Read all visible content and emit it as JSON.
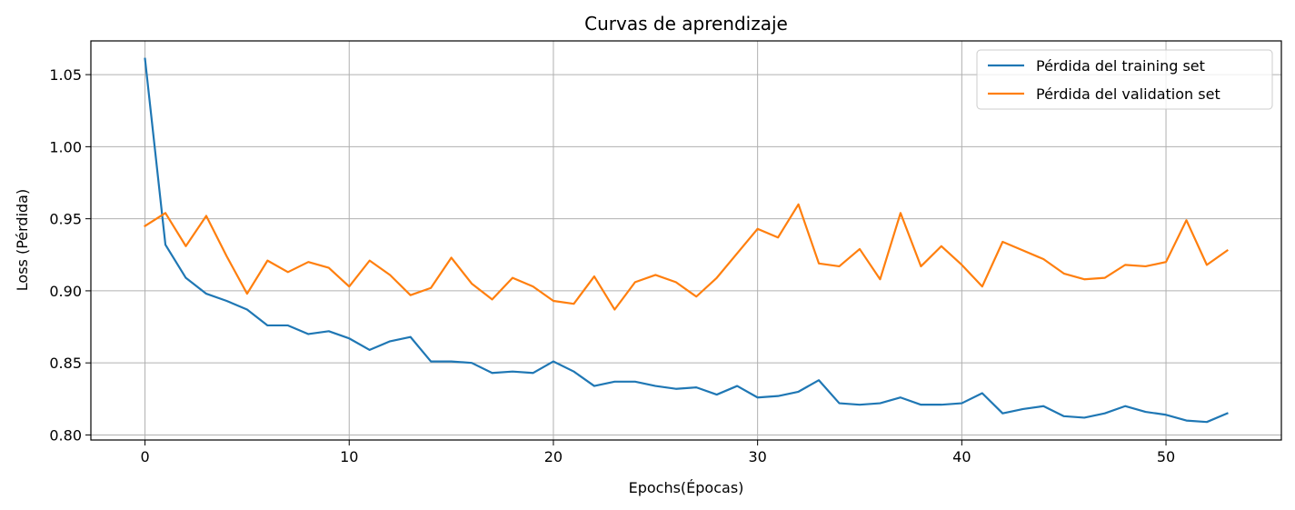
{
  "chart_data": {
    "type": "line",
    "title": "Curvas de aprendizaje",
    "xlabel": "Epochs(Épocas)",
    "ylabel": "Loss (Pérdida)",
    "xlim": [
      -2.65,
      55.65
    ],
    "ylim": [
      0.7965,
      1.0734
    ],
    "xticks": [
      0,
      10,
      20,
      30,
      40,
      50
    ],
    "xtick_labels": [
      "0",
      "10",
      "20",
      "30",
      "40",
      "50"
    ],
    "yticks": [
      0.8,
      0.85,
      0.9,
      0.95,
      1.0,
      1.05
    ],
    "ytick_labels": [
      "0.80",
      "0.85",
      "0.90",
      "0.95",
      "1.00",
      "1.05"
    ],
    "grid": true,
    "legend_position": "top-right",
    "x": [
      0,
      1,
      2,
      3,
      4,
      5,
      6,
      7,
      8,
      9,
      10,
      11,
      12,
      13,
      14,
      15,
      16,
      17,
      18,
      19,
      20,
      21,
      22,
      23,
      24,
      25,
      26,
      27,
      28,
      29,
      30,
      31,
      32,
      33,
      34,
      35,
      36,
      37,
      38,
      39,
      40,
      41,
      42,
      43,
      44,
      45,
      46,
      47,
      48,
      49,
      50,
      51,
      52,
      53
    ],
    "series": [
      {
        "name": "Pérdida del training set",
        "color": "#1f77b4",
        "values": [
          1.061,
          0.932,
          0.909,
          0.898,
          0.893,
          0.887,
          0.876,
          0.876,
          0.87,
          0.872,
          0.867,
          0.859,
          0.865,
          0.868,
          0.851,
          0.851,
          0.85,
          0.843,
          0.844,
          0.843,
          0.851,
          0.844,
          0.834,
          0.837,
          0.837,
          0.834,
          0.832,
          0.833,
          0.828,
          0.834,
          0.826,
          0.827,
          0.83,
          0.838,
          0.822,
          0.821,
          0.822,
          0.826,
          0.821,
          0.821,
          0.822,
          0.829,
          0.815,
          0.818,
          0.82,
          0.813,
          0.812,
          0.815,
          0.82,
          0.816,
          0.814,
          0.81,
          0.809,
          0.815
        ]
      },
      {
        "name": "Pérdida del validation set",
        "color": "#ff7f0e",
        "values": [
          0.945,
          0.954,
          0.931,
          0.952,
          0.924,
          0.898,
          0.921,
          0.913,
          0.92,
          0.916,
          0.903,
          0.921,
          0.911,
          0.897,
          0.902,
          0.923,
          0.905,
          0.894,
          0.909,
          0.903,
          0.893,
          0.891,
          0.91,
          0.887,
          0.906,
          0.911,
          0.906,
          0.896,
          0.909,
          0.926,
          0.943,
          0.937,
          0.96,
          0.919,
          0.917,
          0.929,
          0.908,
          0.954,
          0.917,
          0.931,
          0.918,
          0.903,
          0.934,
          0.928,
          0.922,
          0.912,
          0.908,
          0.909,
          0.918,
          0.917,
          0.92,
          0.949,
          0.918,
          0.928
        ]
      }
    ]
  }
}
